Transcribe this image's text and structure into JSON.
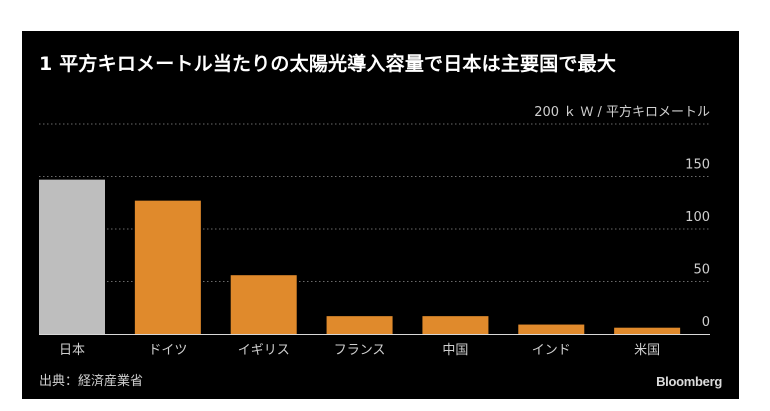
{
  "title": "1 平方キロメートル当たりの太陽光導入容量で日本は主要国で最大",
  "source": "出典：経済産業省",
  "brand": "Bloomberg",
  "colors": {
    "background": "#000000",
    "highlight_bar": "#bebebe",
    "bar": "#e08a2c",
    "gridline": "#6a6a6a",
    "axis_text": "#cfcfcf"
  },
  "chart_data": {
    "type": "bar",
    "title": "1 平方キロメートル当たりの太陽光導入容量で日本は主要国で最大",
    "unit_label": "200 ｋ Ｗ / 平方キロメートル",
    "categories": [
      "日本",
      "ドイツ",
      "イギリス",
      "フランス",
      "中国",
      "インド",
      "米国"
    ],
    "values": [
      147,
      127,
      56,
      17,
      17,
      9,
      6
    ],
    "highlight_index": 0,
    "ylim": [
      0,
      200
    ],
    "yticks": [
      0,
      50,
      100,
      150,
      200
    ],
    "ytick_labels": [
      "0",
      "50",
      "100",
      "150",
      "200 ｋ Ｗ / 平方キロメートル"
    ],
    "grid": true,
    "source": "出典：経済産業省"
  }
}
